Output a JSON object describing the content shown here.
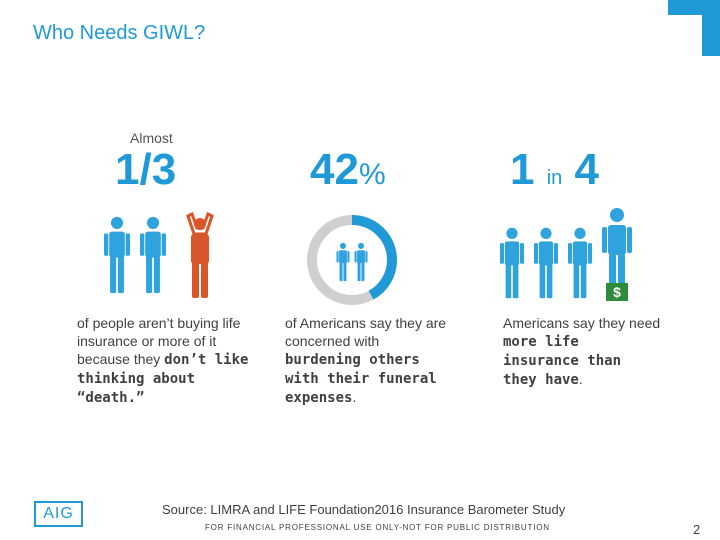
{
  "title": "Who Needs GIWL?",
  "stat1": {
    "prefix": "Almost",
    "value": "1/3",
    "text_plain": "of people aren’t buying life insurance or more of it because they ",
    "text_bold": "don’t like thinking about “death.”"
  },
  "stat2": {
    "value": "42",
    "suffix": "%",
    "text_plain": "of Americans say they are concerned with ",
    "text_bold": "burdening others with their funeral expenses",
    "text_end": "."
  },
  "stat3": {
    "value_a": "1",
    "value_in": "in",
    "value_b": "4",
    "text_plain": "Americans say they need ",
    "text_bold": "more life insurance than they have",
    "text_end": "."
  },
  "source": "Source: LIMRA and LIFE Foundation2016 Insurance Barometer Study",
  "footer": "FOR FINANCIAL PROFESSIONAL USE ONLY-NOT FOR PUBLIC DISTRIBUTION",
  "page_number": "2",
  "logo_text": "AIG",
  "dollar_symbol": "$",
  "colors": {
    "blue": "#1f9ad6",
    "person_blue": "#2ea3dd",
    "orange": "#d8562a",
    "gray_ring": "#cfcfcf",
    "green": "#2f8a3b"
  },
  "donut": {
    "percent": 42
  }
}
